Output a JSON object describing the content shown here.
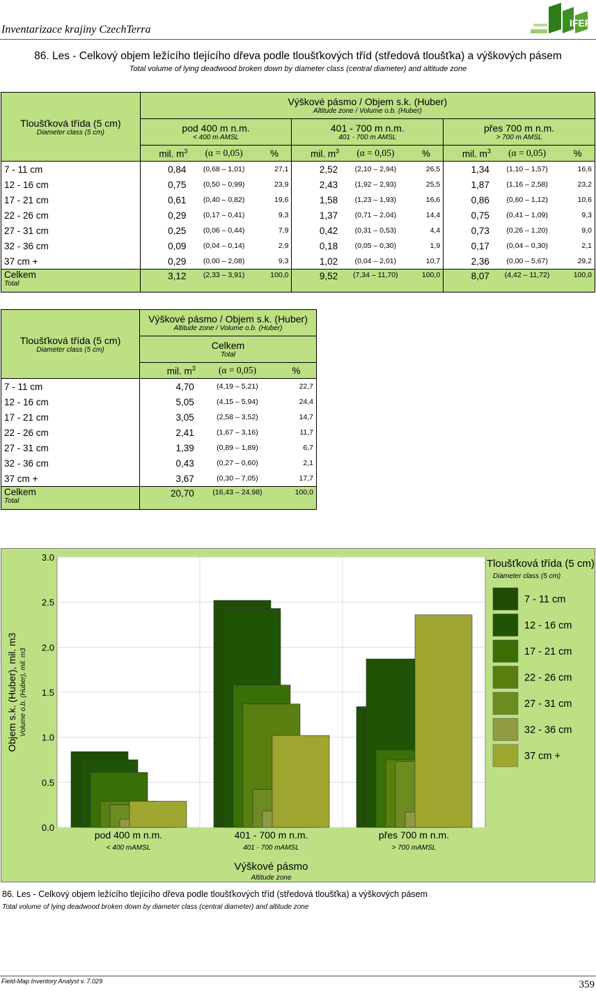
{
  "header": {
    "title": "Inventarizace krajiny CzechTerra",
    "logo_text": "IFER"
  },
  "title": "86. Les - Celkový objem ležícího tlejícího dřeva podle tloušťkových tříd (středová tloušťka) a výškových pásem",
  "subtitle": "Total volume of lying deadwood broken down by diameter class (central diameter) and altitude zone",
  "table1": {
    "row_header": "Tloušťková třída (5 cm)",
    "row_header_en": "Diameter class (5 cm)",
    "group_header": "Výškové pásmo / Objem s.k. (Huber)",
    "group_header_en": "Altitude zone / Volume o.b. (Huber)",
    "columns": [
      {
        "label": "pod 400 m n.m.",
        "label_en": "< 400 m AMSL"
      },
      {
        "label": "401 - 700 m n.m.",
        "label_en": "401 - 700 m AMSL"
      },
      {
        "label": "přes 700 m n.m.",
        "label_en": "> 700 m AMSL"
      }
    ],
    "unit": "mil. m",
    "unit_exp": "3",
    "alpha": "(α = 0,05)",
    "pct": "%",
    "rows": [
      {
        "label": "7 - 11 cm",
        "cells": [
          [
            "0,84",
            "(0,68  –  1,01)",
            "27,1"
          ],
          [
            "2,52",
            "(2,10  –  2,94)",
            "26,5"
          ],
          [
            "1,34",
            "(1,10  –  1,57)",
            "16,6"
          ]
        ]
      },
      {
        "label": "12 - 16 cm",
        "cells": [
          [
            "0,75",
            "(0,50  –  0,99)",
            "23,9"
          ],
          [
            "2,43",
            "(1,92  –  2,93)",
            "25,5"
          ],
          [
            "1,87",
            "(1,16  –  2,58)",
            "23,2"
          ]
        ]
      },
      {
        "label": "17 - 21 cm",
        "cells": [
          [
            "0,61",
            "(0,40  –  0,82)",
            "19,6"
          ],
          [
            "1,58",
            "(1,23  –  1,93)",
            "16,6"
          ],
          [
            "0,86",
            "(0,60  –  1,12)",
            "10,6"
          ]
        ]
      },
      {
        "label": "22 - 26 cm",
        "cells": [
          [
            "0,29",
            "(0,17  –  0,41)",
            "9,3"
          ],
          [
            "1,37",
            "(0,71  –  2,04)",
            "14,4"
          ],
          [
            "0,75",
            "(0,41  –  1,09)",
            "9,3"
          ]
        ]
      },
      {
        "label": "27 - 31 cm",
        "cells": [
          [
            "0,25",
            "(0,06  –  0,44)",
            "7,9"
          ],
          [
            "0,42",
            "(0,31  –  0,53)",
            "4,4"
          ],
          [
            "0,73",
            "(0,26  –  1,20)",
            "9,0"
          ]
        ]
      },
      {
        "label": "32 - 36 cm",
        "cells": [
          [
            "0,09",
            "(0,04  –  0,14)",
            "2,9"
          ],
          [
            "0,18",
            "(0,05  –  0,30)",
            "1,9"
          ],
          [
            "0,17",
            "(0,04  –  0,30)",
            "2,1"
          ]
        ]
      },
      {
        "label": "37 cm +",
        "cells": [
          [
            "0,29",
            "(0,00  –  2,08)",
            "9,3"
          ],
          [
            "1,02",
            "(0,04  –  2,01)",
            "10,7"
          ],
          [
            "2,36",
            "(0,00  –  5,67)",
            "29,2"
          ]
        ]
      }
    ],
    "total": {
      "label": "Celkem",
      "label_en": "Total",
      "cells": [
        [
          "3,12",
          "(2,33  –  3,91)",
          "100,0"
        ],
        [
          "9,52",
          "(7,34 – 11,70)",
          "100,0"
        ],
        [
          "8,07",
          "(4,42 – 11,72)",
          "100,0"
        ]
      ]
    }
  },
  "table2": {
    "row_header": "Tloušťková třída (5 cm)",
    "row_header_en": "Diameter class (5 cm)",
    "group_header": "Výškové pásmo / Objem s.k. (Huber)",
    "group_header_en": "Altitude zone / Volume o.b. (Huber)",
    "column": {
      "label": "Celkem",
      "label_en": "Total"
    },
    "unit": "mil. m",
    "unit_exp": "3",
    "alpha": "(α = 0,05)",
    "pct": "%",
    "rows": [
      {
        "label": "7 - 11 cm",
        "cell": [
          "4,70",
          "(4,19  –  5,21)",
          "22,7"
        ]
      },
      {
        "label": "12 - 16 cm",
        "cell": [
          "5,05",
          "(4,15  –  5,94)",
          "24,4"
        ]
      },
      {
        "label": "17 - 21 cm",
        "cell": [
          "3,05",
          "(2,58  –  3,52)",
          "14,7"
        ]
      },
      {
        "label": "22 - 26 cm",
        "cell": [
          "2,41",
          "(1,67  –  3,16)",
          "11,7"
        ]
      },
      {
        "label": "27 - 31 cm",
        "cell": [
          "1,39",
          "(0,89  –  1,89)",
          "6,7"
        ]
      },
      {
        "label": "32 - 36 cm",
        "cell": [
          "0,43",
          "(0,27  –  0,60)",
          "2,1"
        ]
      },
      {
        "label": "37 cm +",
        "cell": [
          "3,67",
          "(0,30  –  7,05)",
          "17,7"
        ]
      }
    ],
    "total": {
      "label": "Celkem",
      "label_en": "Total",
      "cell": [
        "20,70",
        "(16,43 – 24,98)",
        "100,0"
      ]
    }
  },
  "chart_data": {
    "type": "bar",
    "categories": [
      "pod 400 m n.m.",
      "401 - 700 m n.m.",
      "přes 700 m n.m."
    ],
    "categories_en": [
      "< 400 mAMSL",
      "401 - 700 mAMSL",
      "> 700 mAMSL"
    ],
    "xlabel": "Výškové pásmo",
    "xlabel_en": "Altitude zone",
    "ylabel": "Objem s.k. (Huber), mil. m3",
    "ylabel_en": "Volume o.b. (Huber), mil. m3",
    "ylim": [
      0,
      3.0
    ],
    "yticks": [
      "0.0",
      "0.5",
      "1.0",
      "1.5",
      "2.0",
      "2.5",
      "3.0"
    ],
    "grid": true,
    "legend_title": "Tloušťková třída (5 cm)",
    "legend_title_en": "Diameter class (5 cm)",
    "legend_position": "right",
    "series": [
      {
        "name": "7 - 11 cm",
        "color": "#1f4d05",
        "values": [
          0.84,
          2.52,
          1.34
        ]
      },
      {
        "name": "12 - 16 cm",
        "color": "#1f5406",
        "values": [
          0.75,
          2.43,
          1.87
        ]
      },
      {
        "name": "17 - 21 cm",
        "color": "#3a6f08",
        "values": [
          0.61,
          1.58,
          0.86
        ]
      },
      {
        "name": "22 - 26 cm",
        "color": "#587f10",
        "values": [
          0.29,
          1.37,
          0.75
        ]
      },
      {
        "name": "27 - 31 cm",
        "color": "#6c8c22",
        "values": [
          0.25,
          0.42,
          0.73
        ]
      },
      {
        "name": "32 - 36 cm",
        "color": "#909a42",
        "values": [
          0.09,
          0.18,
          0.17
        ]
      },
      {
        "name": "37 cm +",
        "color": "#9fa630",
        "values": [
          0.29,
          1.02,
          2.36
        ]
      }
    ]
  },
  "caption": {
    "text": "86. Les - Celkový objem ležícího tlejícího dřeva podle tloušťkových tříd (středová tloušťka) a výškových pásem",
    "text_en": "Total volume of lying deadwood broken down by diameter class (central diameter) and altitude zone"
  },
  "footer": {
    "software": "Field-Map Inventory Analyst v. 7.029",
    "page_number": "359"
  }
}
